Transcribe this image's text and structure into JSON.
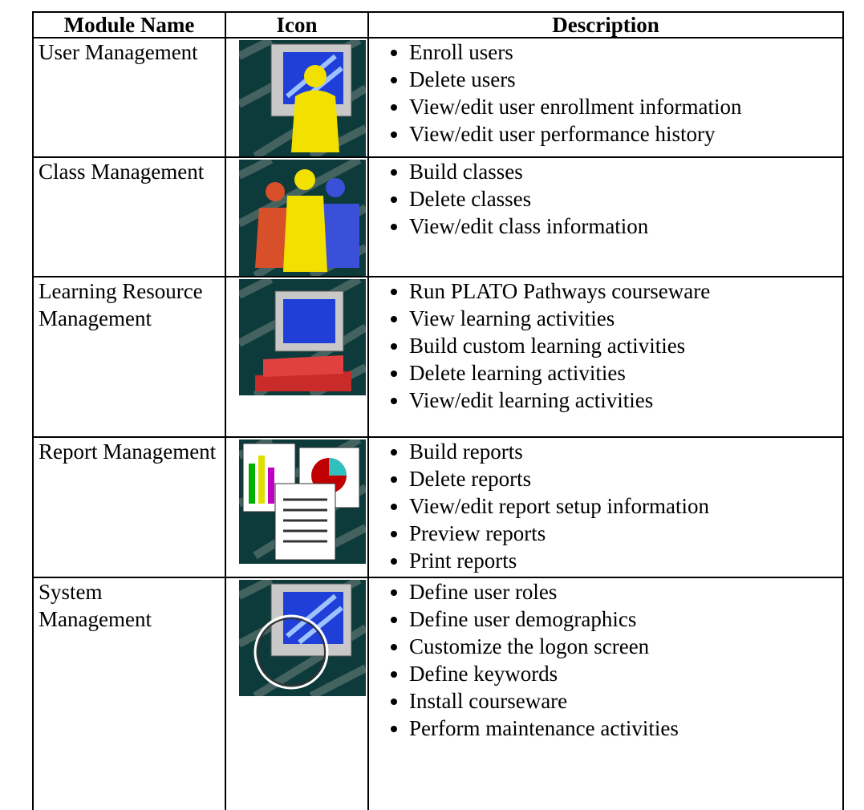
{
  "header": [
    "Module Name",
    "Icon",
    "Description"
  ],
  "rows": [
    {
      "name": "User Management",
      "items": [
        "Enroll users",
        "Delete users",
        "View/edit user enrollment information",
        "View/edit user performance history"
      ]
    },
    {
      "name": "Class Management",
      "items": [
        "Build classes",
        "Delete classes",
        "View/edit class information"
      ]
    },
    {
      "name": "Learning Resource Management",
      "items": [
        "Run PLATO Pathways courseware",
        "View learning activities",
        "Build custom learning activities",
        "Delete learning activities",
        "View/edit learning activities"
      ]
    },
    {
      "name": "Report Management",
      "items": [
        "Build reports",
        "Delete reports",
        "View/edit report setup information",
        "Preview reports",
        "Print reports"
      ]
    },
    {
      "name": "System Management",
      "items": [
        "Define user roles",
        "Define user demographics",
        "Customize the logon screen",
        "Define keywords",
        "Install courseware",
        "Perform maintenance activities"
      ]
    }
  ]
}
